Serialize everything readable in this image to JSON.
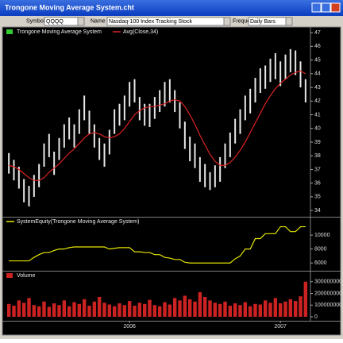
{
  "window": {
    "title": "Trongone Moving Average System.cht",
    "toolbar": {
      "symbol_label": "Symbol",
      "symbol": "QQQQ",
      "name_label": "Name",
      "name": "Nasdaq-100 Index Tracking Stock",
      "frequency_label": "Frequency",
      "frequency": "Daily Bars"
    }
  },
  "chart_data": [
    {
      "type": "ohlc",
      "bar_color": "#e8e8e8",
      "ylim": [
        33.6,
        47.3
      ],
      "yticks": [
        34,
        35,
        36,
        37,
        38,
        39,
        40,
        41,
        42,
        43,
        44,
        45,
        46,
        47
      ],
      "series": [
        {
          "name": "Trongone Moving Average System",
          "color": "#33cc33",
          "high": [
            38.2,
            37.7,
            37.2,
            36.3,
            35.8,
            36.6,
            37.4,
            38.9,
            39.6,
            38.3,
            39.3,
            40.3,
            40.8,
            40.3,
            41.4,
            42.4,
            41.3,
            40.3,
            39.3,
            38.9,
            39.9,
            41.4,
            41.8,
            42.4,
            43.4,
            43.6,
            42.3,
            41.8,
            41.8,
            42.3,
            42.8,
            43.4,
            43.6,
            42.8,
            41.9,
            40.5,
            39.4,
            38.9,
            37.9,
            37.4,
            36.8,
            37.3,
            37.9,
            38.9,
            39.7,
            40.7,
            41.4,
            42.4,
            42.9,
            43.7,
            44.4,
            44.6,
            45.1,
            45.5,
            44.9,
            45.4,
            45.8,
            45.7,
            44.9,
            43.6
          ],
          "low": [
            36.7,
            36.2,
            35.6,
            34.6,
            34.3,
            35,
            35.7,
            37.2,
            37.9,
            36.6,
            37.7,
            38.6,
            39.2,
            38.6,
            39.6,
            40.6,
            39.6,
            38.6,
            37.7,
            37.2,
            38.1,
            39.6,
            40.2,
            40.6,
            41.6,
            41.9,
            40.6,
            40.2,
            40.1,
            40.7,
            41.2,
            41.6,
            41.9,
            41.2,
            40,
            38.5,
            37.6,
            37.1,
            36.1,
            35.7,
            35.5,
            35.7,
            36.1,
            37.1,
            37.9,
            38.9,
            39.6,
            40.6,
            41.1,
            41.9,
            42.6,
            42.9,
            43.4,
            43.6,
            43.1,
            43.6,
            44.1,
            43.9,
            43,
            41.9
          ]
        },
        {
          "name": "Avg(Close,34)",
          "color": "#dd2222",
          "values": [
            37.3,
            37.2,
            37.0,
            36.7,
            36.4,
            36.2,
            36.2,
            36.4,
            36.8,
            37.1,
            37.4,
            37.8,
            38.2,
            38.5,
            38.9,
            39.3,
            39.6,
            39.7,
            39.6,
            39.4,
            39.3,
            39.4,
            39.6,
            40.0,
            40.5,
            41.0,
            41.3,
            41.5,
            41.6,
            41.6,
            41.7,
            41.8,
            42.0,
            42.1,
            42.0,
            41.6,
            41.0,
            40.3,
            39.5,
            38.8,
            38.1,
            37.6,
            37.3,
            37.3,
            37.5,
            37.9,
            38.4,
            39.0,
            39.7,
            40.4,
            41.1,
            41.8,
            42.4,
            42.9,
            43.3,
            43.6,
            43.9,
            44.1,
            44.2,
            44.0
          ]
        }
      ]
    },
    {
      "type": "line",
      "ylim": [
        5000,
        12400
      ],
      "yticks": [
        6000,
        8000,
        10000
      ],
      "series": [
        {
          "name": "SystemEquity(Trongone Moving Average System)",
          "color": "#e6e600",
          "values": [
            6300,
            6300,
            6300,
            6300,
            6300,
            6800,
            7200,
            7500,
            7500,
            7800,
            8000,
            8000,
            8200,
            8300,
            8300,
            8300,
            8300,
            8300,
            8300,
            8300,
            8000,
            8100,
            8200,
            8200,
            8200,
            7600,
            7600,
            7500,
            7500,
            7200,
            7200,
            6800,
            6700,
            6500,
            6500,
            6100,
            6000,
            6000,
            6000,
            6000,
            6000,
            6000,
            6000,
            6000,
            6000,
            6600,
            7000,
            8000,
            8000,
            9500,
            9500,
            10200,
            10200,
            10200,
            11200,
            11200,
            10500,
            10500,
            11200,
            11200
          ]
        }
      ]
    },
    {
      "type": "bar",
      "ylim": [
        0,
        380000000
      ],
      "yticks": [
        0,
        100000000,
        200000000,
        300000000
      ],
      "categories": [
        null,
        null,
        null,
        null,
        null,
        null,
        null,
        null,
        null,
        null,
        null,
        null,
        null,
        null,
        null,
        null,
        null,
        null,
        null,
        null,
        null,
        null,
        null,
        null,
        "2006",
        null,
        null,
        null,
        null,
        null,
        null,
        null,
        null,
        null,
        null,
        null,
        null,
        null,
        null,
        null,
        null,
        null,
        null,
        null,
        null,
        null,
        null,
        null,
        null,
        null,
        null,
        null,
        null,
        null,
        "2007",
        null,
        null,
        null,
        null,
        null
      ],
      "series": [
        {
          "name": "Volume",
          "color": "#cc2222",
          "values": [
            110000000,
            95000000,
            140000000,
            120000000,
            160000000,
            100000000,
            90000000,
            130000000,
            85000000,
            115000000,
            100000000,
            140000000,
            90000000,
            125000000,
            110000000,
            150000000,
            95000000,
            130000000,
            170000000,
            120000000,
            105000000,
            90000000,
            115000000,
            100000000,
            135000000,
            95000000,
            120000000,
            110000000,
            145000000,
            100000000,
            90000000,
            125000000,
            105000000,
            160000000,
            140000000,
            180000000,
            150000000,
            130000000,
            210000000,
            170000000,
            140000000,
            120000000,
            110000000,
            130000000,
            95000000,
            115000000,
            100000000,
            125000000,
            90000000,
            110000000,
            105000000,
            140000000,
            120000000,
            160000000,
            115000000,
            130000000,
            150000000,
            135000000,
            175000000,
            300000000
          ]
        }
      ]
    }
  ]
}
